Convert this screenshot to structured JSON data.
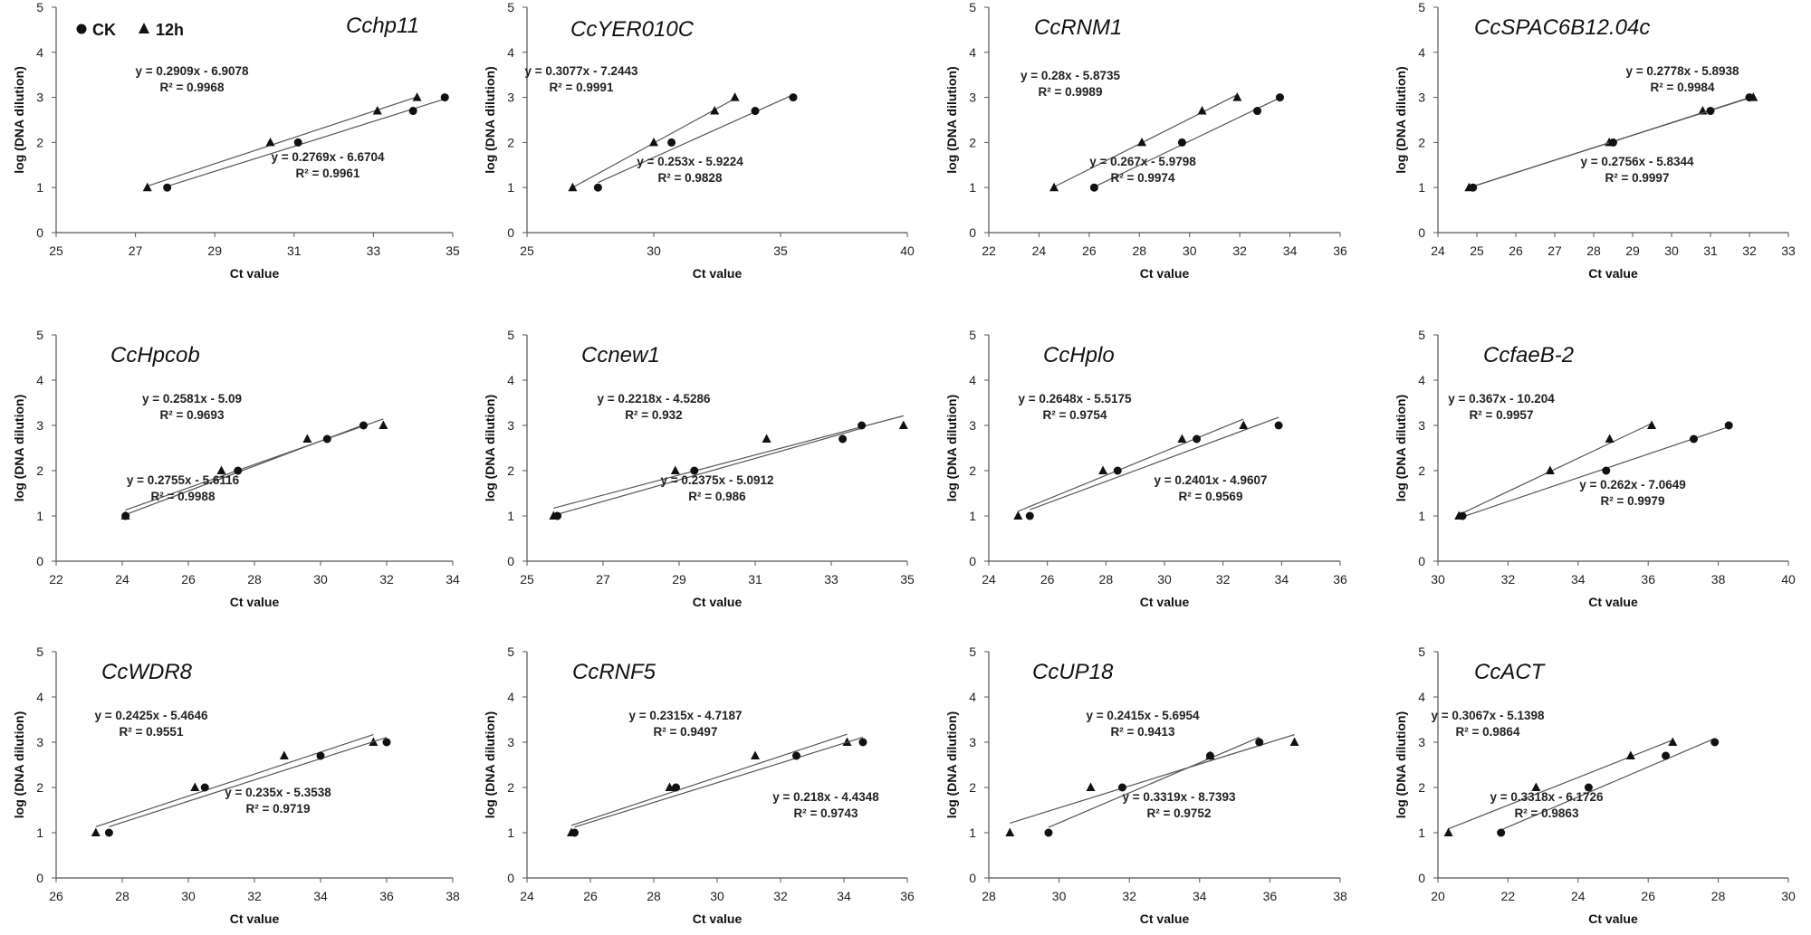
{
  "legend": {
    "ck": "CK",
    "h12": "12h"
  },
  "chart_data": [
    {
      "type": "scatter",
      "title": "Cchp11",
      "xlabel": "Ct value",
      "ylabel": "log (DNA dilution)",
      "xlim": [
        25,
        35
      ],
      "xticks": [
        25,
        27,
        29,
        31,
        33,
        35
      ],
      "ylim": [
        0,
        5
      ],
      "series": [
        {
          "name": "12h",
          "x": [
            27.3,
            30.4,
            33.1,
            34.1
          ],
          "y": [
            1,
            2,
            2.7,
            3
          ],
          "equation": "y = 0.2909x - 6.9078",
          "r2": "R² = 0.9968"
        },
        {
          "name": "CK",
          "x": [
            27.8,
            31.1,
            34.0,
            34.8
          ],
          "y": [
            1,
            2,
            2.7,
            3
          ],
          "equation": "y = 0.2769x - 6.6704",
          "r2": "R² = 0.9961"
        }
      ]
    },
    {
      "type": "scatter",
      "title": "CcYER010C",
      "xlabel": "Ct value",
      "ylabel": "log (DNA dilution)",
      "xlim": [
        25,
        40
      ],
      "xticks": [
        25,
        30,
        35,
        40
      ],
      "ylim": [
        0,
        5
      ],
      "series": [
        {
          "name": "12h",
          "x": [
            26.8,
            30.0,
            32.4,
            33.2
          ],
          "y": [
            1,
            2,
            2.7,
            3
          ],
          "equation": "y = 0.3077x - 7.2443",
          "r2": "R² = 0.9991"
        },
        {
          "name": "CK",
          "x": [
            27.8,
            30.7,
            34.0,
            35.5
          ],
          "y": [
            1,
            2,
            2.7,
            3
          ],
          "equation": "y = 0.253x - 5.9224",
          "r2": "R² = 0.9828"
        }
      ]
    },
    {
      "type": "scatter",
      "title": "CcRNM1",
      "xlabel": "Ct value",
      "ylabel": "log (DNA dilution)",
      "xlim": [
        22,
        36
      ],
      "xticks": [
        22,
        24,
        26,
        28,
        30,
        32,
        34,
        36
      ],
      "ylim": [
        0,
        5
      ],
      "series": [
        {
          "name": "12h",
          "x": [
            24.6,
            28.1,
            30.5,
            31.9
          ],
          "y": [
            1,
            2,
            2.7,
            3
          ],
          "equation": "y = 0.28x - 5.8735",
          "r2": "R² = 0.9989"
        },
        {
          "name": "CK",
          "x": [
            26.2,
            29.7,
            32.7,
            33.6
          ],
          "y": [
            1,
            2,
            2.7,
            3
          ],
          "equation": "y = 0.267x - 5.9798",
          "r2": "R² = 0.9974"
        }
      ]
    },
    {
      "type": "scatter",
      "title": "CcSPAC6B12.04c",
      "xlabel": "Ct value",
      "ylabel": "log (DNA dilution)",
      "xlim": [
        24,
        33
      ],
      "xticks": [
        24,
        25,
        26,
        27,
        28,
        29,
        30,
        31,
        32,
        33
      ],
      "ylim": [
        0,
        5
      ],
      "series": [
        {
          "name": "12h",
          "x": [
            24.8,
            28.4,
            30.8,
            32.1
          ],
          "y": [
            1,
            2,
            2.7,
            3
          ],
          "equation": "y = 0.2778x - 5.8938",
          "r2": "R² = 0.9984"
        },
        {
          "name": "CK",
          "x": [
            24.9,
            28.5,
            31.0,
            32.0
          ],
          "y": [
            1,
            2,
            2.7,
            3
          ],
          "equation": "y = 0.2756x - 5.8344",
          "r2": "R² = 0.9997"
        }
      ]
    },
    {
      "type": "scatter",
      "title": "CcHpcob",
      "xlabel": "Ct value",
      "ylabel": "log (DNA dilution)",
      "xlim": [
        22,
        34
      ],
      "xticks": [
        22,
        24,
        26,
        28,
        30,
        32,
        34
      ],
      "ylim": [
        0,
        5
      ],
      "series": [
        {
          "name": "12h",
          "x": [
            24.1,
            27.0,
            29.6,
            31.9
          ],
          "y": [
            1,
            2,
            2.7,
            3
          ],
          "equation": "y = 0.2581x - 5.09",
          "r2": "R² = 0.9693"
        },
        {
          "name": "CK",
          "x": [
            24.1,
            27.5,
            30.2,
            31.3
          ],
          "y": [
            1,
            2,
            2.7,
            3
          ],
          "equation": "y = 0.2755x - 5.6116",
          "r2": "R² = 0.9988"
        }
      ]
    },
    {
      "type": "scatter",
      "title": "Ccnew1",
      "xlabel": "Ct value",
      "ylabel": "log (DNA dilution)",
      "xlim": [
        25,
        35
      ],
      "xticks": [
        25,
        27,
        29,
        31,
        33,
        35
      ],
      "ylim": [
        0,
        5
      ],
      "series": [
        {
          "name": "12h",
          "x": [
            25.7,
            28.9,
            31.3,
            34.9
          ],
          "y": [
            1,
            2,
            2.7,
            3
          ],
          "equation": "y = 0.2218x - 4.5286",
          "r2": "R² = 0.932"
        },
        {
          "name": "CK",
          "x": [
            25.8,
            29.4,
            33.3,
            33.8
          ],
          "y": [
            1,
            2,
            2.7,
            3
          ],
          "equation": "y = 0.2375x - 5.0912",
          "r2": "R² = 0.986"
        }
      ]
    },
    {
      "type": "scatter",
      "title": "CcHplo",
      "xlabel": "Ct value",
      "ylabel": "log (DNA dilution)",
      "xlim": [
        24,
        36
      ],
      "xticks": [
        24,
        26,
        28,
        30,
        32,
        34,
        36
      ],
      "ylim": [
        0,
        5
      ],
      "series": [
        {
          "name": "12h",
          "x": [
            25.0,
            27.9,
            30.6,
            32.7
          ],
          "y": [
            1,
            2,
            2.7,
            3
          ],
          "equation": "y = 0.2648x - 5.5175",
          "r2": "R² = 0.9754"
        },
        {
          "name": "CK",
          "x": [
            25.4,
            28.4,
            31.1,
            33.9
          ],
          "y": [
            1,
            2,
            2.7,
            3
          ],
          "equation": "y = 0.2401x - 4.9607",
          "r2": "R² = 0.9569"
        }
      ]
    },
    {
      "type": "scatter",
      "title": "CcfaeB-2",
      "xlabel": "Ct value",
      "ylabel": "log (DNA dilution)",
      "xlim": [
        30,
        40
      ],
      "xticks": [
        30,
        32,
        34,
        36,
        38,
        40
      ],
      "ylim": [
        0,
        5
      ],
      "series": [
        {
          "name": "12h",
          "x": [
            30.6,
            33.2,
            34.9,
            36.1
          ],
          "y": [
            1,
            2,
            2.7,
            3
          ],
          "equation": "y = 0.367x - 10.204",
          "r2": "R² = 0.9957"
        },
        {
          "name": "CK",
          "x": [
            30.7,
            34.8,
            37.3,
            38.3
          ],
          "y": [
            1,
            2,
            2.7,
            3
          ],
          "equation": "y = 0.262x - 7.0649",
          "r2": "R² = 0.9979"
        }
      ]
    },
    {
      "type": "scatter",
      "title": "CcWDR8",
      "xlabel": "Ct value",
      "ylabel": "log (DNA dilution)",
      "xlim": [
        26,
        38
      ],
      "xticks": [
        26,
        28,
        30,
        32,
        34,
        36,
        38
      ],
      "ylim": [
        0,
        5
      ],
      "series": [
        {
          "name": "12h",
          "x": [
            27.2,
            30.2,
            32.9,
            35.6
          ],
          "y": [
            1,
            2,
            2.7,
            3
          ],
          "equation": "y = 0.2425x - 5.4646",
          "r2": "R² = 0.9551"
        },
        {
          "name": "CK",
          "x": [
            27.6,
            30.5,
            34.0,
            36.0
          ],
          "y": [
            1,
            2,
            2.7,
            3
          ],
          "equation": "y = 0.235x - 5.3538",
          "r2": "R² = 0.9719"
        }
      ]
    },
    {
      "type": "scatter",
      "title": "CcRNF5",
      "xlabel": "Ct value",
      "ylabel": "log (DNA dilution)",
      "xlim": [
        24,
        36
      ],
      "xticks": [
        24,
        26,
        28,
        30,
        32,
        34,
        36
      ],
      "ylim": [
        0,
        5
      ],
      "series": [
        {
          "name": "12h",
          "x": [
            25.4,
            28.5,
            31.2,
            34.1
          ],
          "y": [
            1,
            2,
            2.7,
            3
          ],
          "equation": "y = 0.2315x - 4.7187",
          "r2": "R² = 0.9497"
        },
        {
          "name": "CK",
          "x": [
            25.5,
            28.7,
            32.5,
            34.6
          ],
          "y": [
            1,
            2,
            2.7,
            3
          ],
          "equation": "y = 0.218x - 4.4348",
          "r2": "R² = 0.9743"
        }
      ]
    },
    {
      "type": "scatter",
      "title": "CcUP18",
      "xlabel": "Ct value",
      "ylabel": "log (DNA dilution)",
      "xlim": [
        28,
        38
      ],
      "xticks": [
        28,
        30,
        32,
        34,
        36,
        38
      ],
      "ylim": [
        0,
        5
      ],
      "series": [
        {
          "name": "12h",
          "x": [
            28.6,
            30.9,
            34.3,
            36.7
          ],
          "y": [
            1,
            2,
            2.7,
            3
          ],
          "equation": "y = 0.2415x - 5.6954",
          "r2": "R² = 0.9413"
        },
        {
          "name": "CK",
          "x": [
            29.7,
            31.8,
            34.3,
            35.7
          ],
          "y": [
            1,
            2,
            2.7,
            3
          ],
          "equation": "y = 0.3319x - 8.7393",
          "r2": "R² = 0.9752"
        }
      ]
    },
    {
      "type": "scatter",
      "title": "CcACT",
      "xlabel": "Ct value",
      "ylabel": "log (DNA dilution)",
      "xlim": [
        20,
        30
      ],
      "xticks": [
        20,
        22,
        24,
        26,
        28,
        30
      ],
      "ylim": [
        0,
        5
      ],
      "series": [
        {
          "name": "12h",
          "x": [
            20.3,
            22.8,
            25.5,
            26.7
          ],
          "y": [
            1,
            2,
            2.7,
            3
          ],
          "equation": "y = 0.3067x - 5.1398",
          "r2": "R² = 0.9864"
        },
        {
          "name": "CK",
          "x": [
            21.8,
            24.3,
            26.5,
            27.9
          ],
          "y": [
            1,
            2,
            2.7,
            3
          ],
          "equation": "y = 0.3318x - 6.1726",
          "r2": "R² = 0.9863"
        }
      ]
    }
  ]
}
